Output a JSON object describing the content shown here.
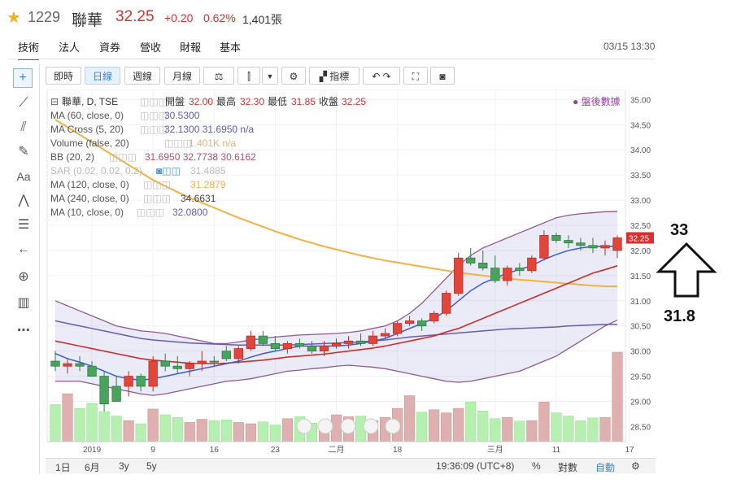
{
  "header": {
    "code": "1229",
    "name": "聯華",
    "price": "32.25",
    "change": "+0.20",
    "change_pct": "0.62%",
    "volume": "1,401張",
    "datetime": "03/15 13:30",
    "colors": {
      "up": "#d8302f",
      "star": "#f2b01e"
    }
  },
  "tabs": [
    {
      "label": "技術",
      "active": true
    },
    {
      "label": "法人"
    },
    {
      "label": "資券"
    },
    {
      "label": "營收"
    },
    {
      "label": "財報"
    },
    {
      "label": "基本"
    }
  ],
  "sidebar_icons": [
    "crosshair-icon",
    "trendline-icon",
    "fork-icon",
    "brush-icon",
    "text-icon",
    "pattern-icon",
    "fibonacci-icon",
    "arrow-left-icon",
    "zoom-icon",
    "measure-icon",
    "more-icon"
  ],
  "sidebar_text_tool": "Aa",
  "toolbar": {
    "intervals": [
      "即時",
      "日線",
      "週線",
      "月線"
    ],
    "active_interval": "日線",
    "indicators_label": "指標"
  },
  "legend": {
    "main": {
      "label": "聯華, D, TSE",
      "open_label": "開盤",
      "open": "32.00",
      "high_label": "最高",
      "high": "32.30",
      "low_label": "最低",
      "low": "31.85",
      "close_label": "收盤",
      "close": "32.25"
    },
    "after_hours": "盤後數據",
    "indicators": [
      {
        "label": "MA (60, close, 0)",
        "values": "30.5300",
        "color": "#5b5bb8"
      },
      {
        "label": "MA Cross (5, 20)",
        "values": "32.1300  31.6950  n/a",
        "color": "#5b5bb8"
      },
      {
        "label": "Volume (false, 20)",
        "values": "1.401K  n/a",
        "color": "#e8b27a"
      },
      {
        "label": "BB (20, 2)",
        "values": "31.6950  32.7738  30.6162",
        "color": "#b0526a"
      },
      {
        "label": "SAR (0.02, 0.02, 0.2)",
        "values": "31.4885",
        "color": "#aaaaaa",
        "disabled": true
      },
      {
        "label": "MA (120, close, 0)",
        "values": "31.2879",
        "color": "#f5b042"
      },
      {
        "label": "MA (240, close, 0)",
        "values": "34.6631",
        "color": "#444444"
      },
      {
        "label": "MA (10, close, 0)",
        "values": "32.0800",
        "color": "#5b5bb8"
      }
    ]
  },
  "bottom": {
    "ranges": [
      "1日",
      "6月",
      "3y",
      "5y"
    ],
    "clock": "19:36:09 (UTC+8)",
    "pct": "%",
    "log": "對數",
    "auto": "自動"
  },
  "annotation": {
    "target_high": "33",
    "target_low": "31.8"
  },
  "chart_data": {
    "type": "candlestick",
    "y_range": [
      28.2,
      35.2
    ],
    "y_ticks": [
      28.5,
      29.0,
      29.5,
      30.0,
      30.5,
      31.0,
      31.5,
      32.0,
      32.5,
      33.0,
      33.5,
      34.0,
      34.5,
      35.0
    ],
    "y_tick_labels": [
      "28.50",
      "29.00",
      "29.50",
      "30.00",
      "30.50",
      "31.00",
      "31.50",
      "32.00",
      "32.50",
      "33.00",
      "33.50",
      "34.00",
      "34.50",
      "35.00"
    ],
    "last_price_label": "32.25",
    "x_labels": [
      {
        "text": "2019",
        "i": 3
      },
      {
        "text": "9",
        "i": 8
      },
      {
        "text": "16",
        "i": 13
      },
      {
        "text": "23",
        "i": 18
      },
      {
        "text": "二月",
        "i": 23
      },
      {
        "text": "18",
        "i": 28
      },
      {
        "text": "三月",
        "i": 36
      },
      {
        "text": "11",
        "i": 41
      },
      {
        "text": "17",
        "i": 47
      }
    ],
    "candles": [
      {
        "o": 29.8,
        "h": 30.0,
        "l": 29.6,
        "c": 29.7
      },
      {
        "o": 29.7,
        "h": 29.85,
        "l": 29.55,
        "c": 29.75
      },
      {
        "o": 29.75,
        "h": 29.9,
        "l": 29.6,
        "c": 29.7
      },
      {
        "o": 29.7,
        "h": 29.8,
        "l": 29.5,
        "c": 29.5
      },
      {
        "o": 29.5,
        "h": 29.6,
        "l": 28.8,
        "c": 28.95
      },
      {
        "o": 29.3,
        "h": 29.5,
        "l": 29.0,
        "c": 29.0
      },
      {
        "o": 29.3,
        "h": 29.6,
        "l": 29.1,
        "c": 29.5
      },
      {
        "o": 29.5,
        "h": 29.55,
        "l": 29.2,
        "c": 29.3
      },
      {
        "o": 29.3,
        "h": 29.9,
        "l": 29.2,
        "c": 29.8
      },
      {
        "o": 29.8,
        "h": 29.95,
        "l": 29.6,
        "c": 29.7
      },
      {
        "o": 29.7,
        "h": 29.9,
        "l": 29.55,
        "c": 29.65
      },
      {
        "o": 29.65,
        "h": 29.8,
        "l": 29.5,
        "c": 29.75
      },
      {
        "o": 29.75,
        "h": 30.0,
        "l": 29.6,
        "c": 29.8
      },
      {
        "o": 29.8,
        "h": 29.9,
        "l": 29.7,
        "c": 29.78
      },
      {
        "o": 30.0,
        "h": 30.1,
        "l": 29.8,
        "c": 29.85
      },
      {
        "o": 29.85,
        "h": 30.1,
        "l": 29.75,
        "c": 30.05
      },
      {
        "o": 30.05,
        "h": 30.4,
        "l": 30.0,
        "c": 30.3
      },
      {
        "o": 30.3,
        "h": 30.4,
        "l": 30.1,
        "c": 30.15
      },
      {
        "o": 30.15,
        "h": 30.3,
        "l": 30.0,
        "c": 30.05
      },
      {
        "o": 30.05,
        "h": 30.2,
        "l": 29.95,
        "c": 30.15
      },
      {
        "o": 30.15,
        "h": 30.25,
        "l": 30.05,
        "c": 30.1
      },
      {
        "o": 30.1,
        "h": 30.2,
        "l": 29.95,
        "c": 30.0
      },
      {
        "o": 30.0,
        "h": 30.2,
        "l": 29.9,
        "c": 30.1
      },
      {
        "o": 30.1,
        "h": 30.25,
        "l": 30.05,
        "c": 30.15
      },
      {
        "o": 30.15,
        "h": 30.3,
        "l": 30.05,
        "c": 30.2
      },
      {
        "o": 30.2,
        "h": 30.35,
        "l": 30.1,
        "c": 30.15
      },
      {
        "o": 30.15,
        "h": 30.4,
        "l": 30.1,
        "c": 30.3
      },
      {
        "o": 30.3,
        "h": 30.45,
        "l": 30.25,
        "c": 30.35
      },
      {
        "o": 30.35,
        "h": 30.6,
        "l": 30.3,
        "c": 30.55
      },
      {
        "o": 30.55,
        "h": 30.7,
        "l": 30.5,
        "c": 30.6
      },
      {
        "o": 30.6,
        "h": 30.65,
        "l": 30.4,
        "c": 30.5
      },
      {
        "o": 30.6,
        "h": 30.8,
        "l": 30.55,
        "c": 30.75
      },
      {
        "o": 30.75,
        "h": 31.2,
        "l": 30.7,
        "c": 31.15
      },
      {
        "o": 31.15,
        "h": 31.95,
        "l": 31.1,
        "c": 31.85
      },
      {
        "o": 31.85,
        "h": 32.05,
        "l": 31.7,
        "c": 31.75
      },
      {
        "o": 31.75,
        "h": 32.0,
        "l": 31.6,
        "c": 31.65
      },
      {
        "o": 31.65,
        "h": 31.9,
        "l": 31.35,
        "c": 31.4
      },
      {
        "o": 31.4,
        "h": 31.7,
        "l": 31.3,
        "c": 31.65
      },
      {
        "o": 31.65,
        "h": 31.75,
        "l": 31.5,
        "c": 31.6
      },
      {
        "o": 31.6,
        "h": 31.9,
        "l": 31.55,
        "c": 31.85
      },
      {
        "o": 31.85,
        "h": 32.4,
        "l": 31.8,
        "c": 32.3
      },
      {
        "o": 32.3,
        "h": 32.35,
        "l": 32.15,
        "c": 32.2
      },
      {
        "o": 32.2,
        "h": 32.3,
        "l": 32.05,
        "c": 32.15
      },
      {
        "o": 32.15,
        "h": 32.25,
        "l": 32.0,
        "c": 32.1
      },
      {
        "o": 32.1,
        "h": 32.25,
        "l": 31.95,
        "c": 32.05
      },
      {
        "o": 32.05,
        "h": 32.2,
        "l": 31.9,
        "c": 32.1
      },
      {
        "o": 32.0,
        "h": 32.3,
        "l": 31.85,
        "c": 32.25
      }
    ],
    "volume": [
      580,
      750,
      520,
      600,
      470,
      400,
      330,
      280,
      510,
      420,
      380,
      300,
      350,
      330,
      340,
      300,
      280,
      310,
      260,
      360,
      390,
      290,
      280,
      420,
      390,
      400,
      330,
      380,
      520,
      720,
      460,
      500,
      450,
      520,
      620,
      480,
      360,
      380,
      320,
      330,
      620,
      450,
      400,
      330,
      370,
      380,
      1401
    ],
    "ma10": [
      29.95,
      29.85,
      29.78,
      29.7,
      29.6,
      29.5,
      29.45,
      29.42,
      29.45,
      29.5,
      29.55,
      29.6,
      29.65,
      29.7,
      29.75,
      29.8,
      29.88,
      29.95,
      30.0,
      30.05,
      30.1,
      30.1,
      30.1,
      30.1,
      30.12,
      30.15,
      30.2,
      30.25,
      30.35,
      30.45,
      30.55,
      30.65,
      30.8,
      31.0,
      31.2,
      31.35,
      31.45,
      31.55,
      31.62,
      31.7,
      31.82,
      31.92,
      32.0,
      32.05,
      32.08,
      32.08,
      32.08
    ],
    "ma20": [
      30.2,
      30.15,
      30.1,
      30.05,
      30.0,
      29.95,
      29.9,
      29.85,
      29.82,
      29.8,
      29.78,
      29.76,
      29.75,
      29.75,
      29.76,
      29.78,
      29.8,
      29.82,
      29.85,
      29.88,
      29.9,
      29.92,
      29.94,
      29.97,
      30.0,
      30.03,
      30.06,
      30.1,
      30.15,
      30.2,
      30.25,
      30.3,
      30.38,
      30.45,
      30.55,
      30.65,
      30.75,
      30.85,
      30.95,
      31.05,
      31.15,
      31.25,
      31.35,
      31.45,
      31.55,
      31.62,
      31.695
    ],
    "ma60": [
      30.6,
      30.55,
      30.5,
      30.45,
      30.4,
      30.35,
      30.3,
      30.25,
      30.22,
      30.2,
      30.18,
      30.16,
      30.15,
      30.14,
      30.13,
      30.12,
      30.12,
      30.12,
      30.12,
      30.12,
      30.13,
      30.14,
      30.15,
      30.16,
      30.17,
      30.18,
      30.2,
      30.22,
      30.25,
      30.28,
      30.3,
      30.32,
      30.34,
      30.36,
      30.38,
      30.4,
      30.42,
      30.44,
      30.45,
      30.46,
      30.47,
      30.48,
      30.5,
      30.51,
      30.52,
      30.53,
      30.53
    ],
    "ma120": [
      34.6,
      34.45,
      34.3,
      34.15,
      34.0,
      33.85,
      33.7,
      33.55,
      33.4,
      33.28,
      33.16,
      33.05,
      32.95,
      32.85,
      32.75,
      32.65,
      32.56,
      32.47,
      32.38,
      32.3,
      32.22,
      32.15,
      32.08,
      32.02,
      31.96,
      31.9,
      31.85,
      31.8,
      31.76,
      31.72,
      31.68,
      31.64,
      31.6,
      31.56,
      31.53,
      31.5,
      31.47,
      31.44,
      31.42,
      31.4,
      31.38,
      31.36,
      31.34,
      31.32,
      31.3,
      31.29,
      31.2879
    ],
    "bb_upper": [
      31.0,
      30.9,
      30.8,
      30.7,
      30.6,
      30.5,
      30.45,
      30.4,
      30.38,
      30.35,
      30.3,
      30.25,
      30.2,
      30.15,
      30.15,
      30.18,
      30.22,
      30.25,
      30.28,
      30.3,
      30.32,
      30.33,
      30.34,
      30.35,
      30.37,
      30.4,
      30.45,
      30.5,
      30.6,
      30.75,
      30.95,
      31.2,
      31.45,
      31.7,
      31.9,
      32.05,
      32.15,
      32.25,
      32.35,
      32.45,
      32.55,
      32.65,
      32.7,
      32.73,
      32.75,
      32.77,
      32.7738
    ],
    "bb_lower": [
      29.4,
      29.4,
      29.4,
      29.35,
      29.3,
      29.25,
      29.2,
      29.15,
      29.12,
      29.15,
      29.2,
      29.25,
      29.3,
      29.35,
      29.4,
      29.42,
      29.45,
      29.5,
      29.55,
      29.6,
      29.62,
      29.65,
      29.67,
      29.7,
      29.72,
      29.7,
      29.68,
      29.65,
      29.6,
      29.55,
      29.5,
      29.45,
      29.4,
      29.38,
      29.4,
      29.45,
      29.5,
      29.55,
      29.6,
      29.7,
      29.8,
      29.9,
      30.05,
      30.2,
      30.35,
      30.5,
      30.6162
    ]
  }
}
